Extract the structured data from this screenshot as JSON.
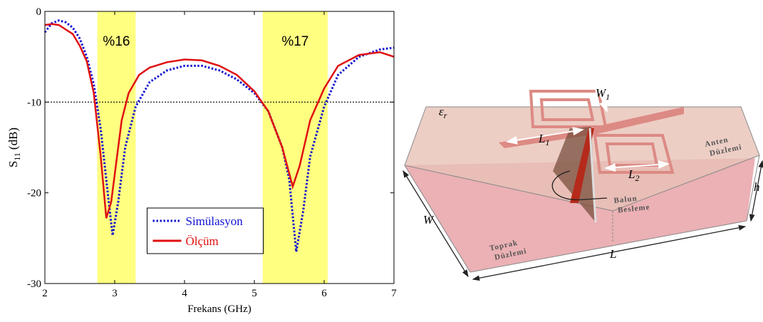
{
  "chart_data": {
    "type": "line",
    "xlabel": "Frekans (GHz)",
    "ylabel": {
      "symbol": "S",
      "subscript": "11",
      "unit": "(dB)"
    },
    "xlim": [
      2,
      7
    ],
    "ylim": [
      -30,
      0
    ],
    "xticks": [
      2,
      3,
      4,
      5,
      6,
      7
    ],
    "yticks": [
      -30,
      -20,
      -10,
      0
    ],
    "legend": "lower center",
    "bands": [
      {
        "x": [
          2.75,
          3.3
        ],
        "label": "%16"
      },
      {
        "x": [
          5.12,
          6.05
        ],
        "label": "%17"
      }
    ],
    "band_color": "#ffff80",
    "hline": -10,
    "series": [
      {
        "name": "Simülasyon",
        "color": "#1010d0",
        "dash": "dotted",
        "x": [
          2.0,
          2.1,
          2.2,
          2.3,
          2.4,
          2.5,
          2.6,
          2.7,
          2.8,
          2.9,
          2.97,
          3.05,
          3.15,
          3.3,
          3.5,
          3.75,
          4.0,
          4.25,
          4.5,
          4.75,
          5.0,
          5.2,
          5.4,
          5.5,
          5.6,
          5.7,
          5.8,
          6.0,
          6.2,
          6.5,
          6.8,
          7.0
        ],
        "values": [
          -2.3,
          -1.3,
          -1.0,
          -1.2,
          -1.8,
          -3,
          -5,
          -8,
          -13,
          -20,
          -24.7,
          -21,
          -15,
          -10.5,
          -7.8,
          -6.5,
          -6.0,
          -6.0,
          -6.5,
          -7.5,
          -9.0,
          -11,
          -15,
          -18.5,
          -26.5,
          -22,
          -16,
          -10.5,
          -7,
          -5,
          -4.2,
          -4.0
        ]
      },
      {
        "name": "Ölçüm",
        "color": "#e01010",
        "dash": "solid",
        "x": [
          2.0,
          2.1,
          2.2,
          2.3,
          2.4,
          2.5,
          2.6,
          2.7,
          2.8,
          2.88,
          2.95,
          3.0,
          3.1,
          3.2,
          3.35,
          3.5,
          3.75,
          4.0,
          4.25,
          4.5,
          4.75,
          5.0,
          5.2,
          5.4,
          5.55,
          5.65,
          5.8,
          6.0,
          6.2,
          6.5,
          6.8,
          7.0
        ],
        "values": [
          -1.5,
          -1.4,
          -1.5,
          -2,
          -2.5,
          -3.8,
          -5.5,
          -9,
          -16,
          -22.8,
          -21,
          -18,
          -12,
          -9,
          -7,
          -6.2,
          -5.6,
          -5.3,
          -5.4,
          -6,
          -7,
          -8.8,
          -11,
          -15,
          -19.3,
          -17,
          -12,
          -8.5,
          -6,
          -4.8,
          -4.5,
          -5.0
        ]
      }
    ]
  },
  "diagram": {
    "labels": {
      "permittivity": {
        "symbol": "ε",
        "subscript": "r"
      },
      "w1": {
        "symbol": "W",
        "subscript": "1"
      },
      "l1": {
        "symbol": "L",
        "subscript": "1"
      },
      "l2": {
        "symbol": "L",
        "subscript": "2"
      },
      "antenna_plane": [
        "Anten",
        "Düzlemi"
      ],
      "balun_feed": [
        "Balun",
        "Besleme"
      ],
      "ground_plane": [
        "Toprak",
        "Düzlemi"
      ],
      "width": "W",
      "length": "L",
      "height": "h"
    }
  }
}
